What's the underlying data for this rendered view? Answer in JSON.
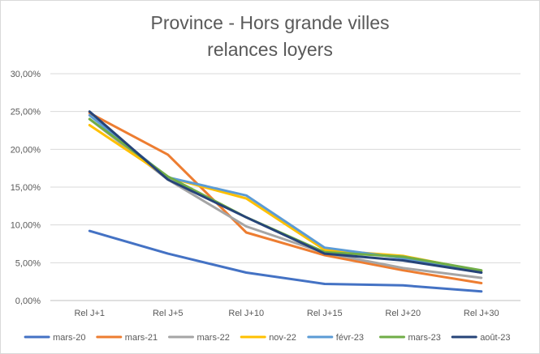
{
  "chart_data": {
    "type": "line",
    "title_line1": "Province - Hors grande villes",
    "title_line2": "relances loyers",
    "xlabel": "",
    "ylabel": "",
    "categories": [
      "Rel J+1",
      "Rel J+5",
      "Rel J+10",
      "Rel J+15",
      "Rel J+20",
      "Rel J+30"
    ],
    "yticks": [
      "0,00%",
      "5,00%",
      "10,00%",
      "15,00%",
      "20,00%",
      "25,00%",
      "30,00%"
    ],
    "ylim": [
      0,
      30
    ],
    "grid": true,
    "legend_position": "bottom",
    "series": [
      {
        "name": "mars-20",
        "color": "#4472c4",
        "values": [
          9.2,
          6.2,
          3.7,
          2.2,
          2.0,
          1.2
        ]
      },
      {
        "name": "mars-21",
        "color": "#ed7d31",
        "values": [
          24.8,
          19.3,
          9.0,
          6.0,
          4.0,
          2.3
        ]
      },
      {
        "name": "mars-22",
        "color": "#a5a5a5",
        "values": [
          24.0,
          16.0,
          9.8,
          6.3,
          4.3,
          3.0
        ]
      },
      {
        "name": "nov-22",
        "color": "#ffc000",
        "values": [
          23.2,
          16.3,
          13.5,
          6.7,
          5.9,
          3.9
        ]
      },
      {
        "name": "févr-23",
        "color": "#5b9bd5",
        "values": [
          24.5,
          16.3,
          13.9,
          7.0,
          5.6,
          3.7
        ]
      },
      {
        "name": "mars-23",
        "color": "#70ad47",
        "values": [
          24.0,
          16.4,
          11.0,
          6.4,
          5.8,
          4.0
        ]
      },
      {
        "name": "août-23",
        "color": "#264478",
        "values": [
          25.0,
          16.0,
          11.0,
          6.2,
          5.3,
          3.7
        ]
      }
    ]
  }
}
